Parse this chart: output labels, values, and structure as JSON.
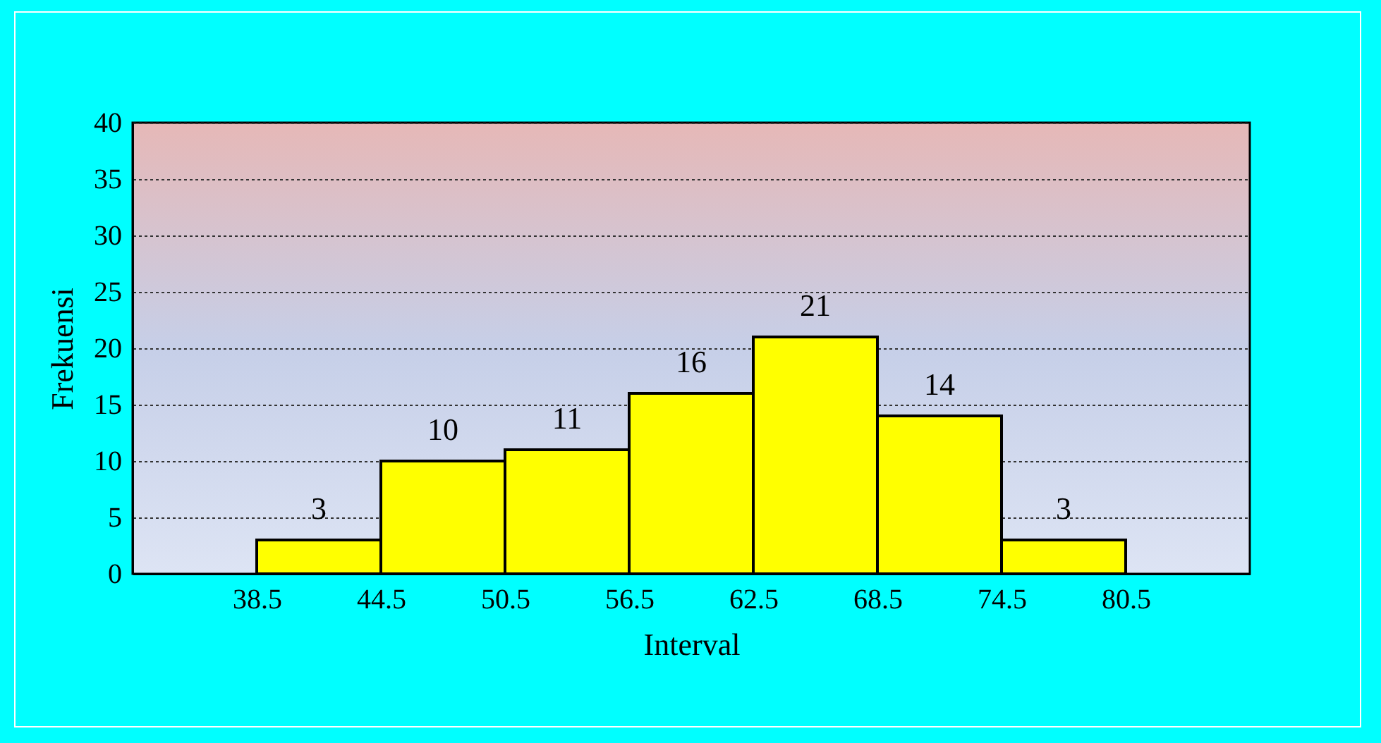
{
  "chart_data": {
    "type": "histogram",
    "xlabel": "Interval",
    "ylabel": "Frekuensi",
    "bins": [
      38.5,
      44.5,
      50.5,
      56.5,
      62.5,
      68.5,
      74.5,
      80.5
    ],
    "values": [
      3,
      10,
      11,
      16,
      21,
      14,
      3
    ],
    "color": "#ffff00",
    "xlim": [
      32.5,
      86.5
    ],
    "xticks": [
      38.5,
      44.5,
      50.5,
      56.5,
      62.5,
      68.5,
      74.5,
      80.5
    ],
    "ylim": [
      0,
      40
    ],
    "yticks": [
      0,
      5,
      10,
      15,
      20,
      25,
      30,
      35,
      40
    ],
    "grid": "y",
    "data_labels": true
  }
}
